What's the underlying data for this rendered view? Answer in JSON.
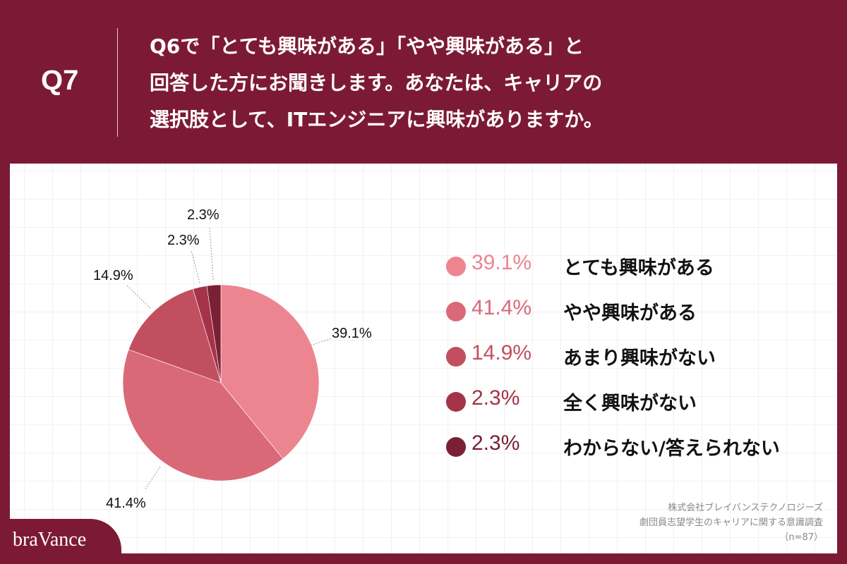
{
  "header": {
    "question_number": "Q7",
    "question_lines": [
      "Q6で「とても興味がある」「やや興味がある」と",
      "回答した方にお聞きします。あなたは、キャリアの",
      "選択肢として、ITエンジニアに興味がありますか。"
    ]
  },
  "chart_data": {
    "type": "pie",
    "title": "Q6で「とても興味がある」「やや興味がある」と回答した方にお聞きします。あなたは、キャリアの選択肢として、ITエンジニアに興味がありますか。",
    "categories": [
      "とても興味がある",
      "やや興味がある",
      "あまり興味がない",
      "全く興味がない",
      "わからない/答えられない"
    ],
    "values": [
      39.1,
      41.4,
      14.9,
      2.3,
      2.3
    ],
    "unit": "%",
    "colors": [
      "#ec8590",
      "#da6978",
      "#c24f5f",
      "#a33447",
      "#7a2035"
    ],
    "slice_labels": [
      "39.1%",
      "41.4%",
      "14.9%",
      "2.3%",
      "2.3%"
    ],
    "start_angle_deg": 0,
    "direction": "clockwise",
    "legend_position": "right",
    "n": 87
  },
  "legend": [
    {
      "pct": "39.1%",
      "label": "とても興味がある",
      "color": "#ec8590"
    },
    {
      "pct": "41.4%",
      "label": "やや興味がある",
      "color": "#da6978"
    },
    {
      "pct": "14.9%",
      "label": "あまり興味がない",
      "color": "#c24f5f"
    },
    {
      "pct": "2.3%",
      "label": "全く興味がない",
      "color": "#a33447"
    },
    {
      "pct": "2.3%",
      "label": "わからない/答えられない",
      "color": "#7a2035"
    }
  ],
  "footer": {
    "logo": "braVance",
    "source_lines": [
      "株式会社ブレイバンステクノロジーズ",
      "劇団員志望学生のキャリアに関する意識調査",
      "（n=87）"
    ]
  },
  "theme": {
    "brand": "#7c1a36"
  }
}
